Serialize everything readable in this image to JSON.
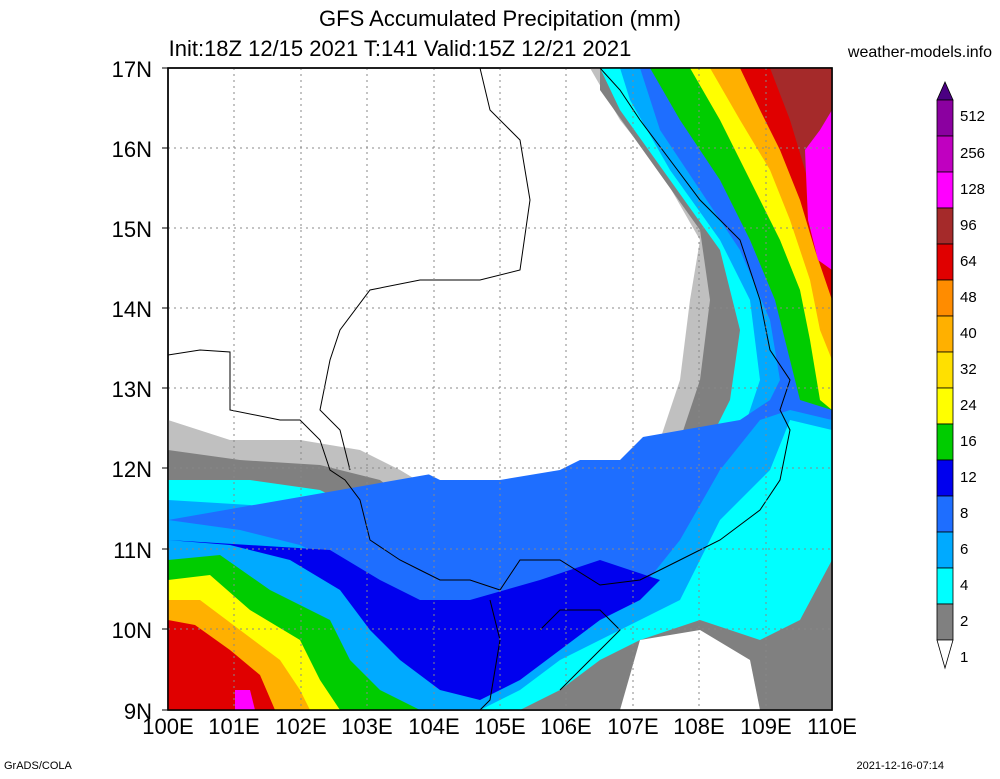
{
  "header": {
    "title": "GFS Accumulated Precipitation (mm)",
    "subtitle": "Init:18Z 12/15 2021 T:141 Valid:15Z 12/21 2021",
    "website": "weather-models.info"
  },
  "axes": {
    "lat_labels": [
      "17N",
      "16N",
      "15N",
      "14N",
      "13N",
      "12N",
      "11N",
      "10N",
      "9N"
    ],
    "lon_labels": [
      "100E",
      "101E",
      "102E",
      "103E",
      "104E",
      "105E",
      "106E",
      "107E",
      "108E",
      "109E",
      "110E"
    ]
  },
  "colorbar": {
    "levels": [
      "512",
      "256",
      "128",
      "96",
      "64",
      "48",
      "40",
      "32",
      "24",
      "16",
      "12",
      "8",
      "6",
      "4",
      "2",
      "1"
    ],
    "colors": [
      "#4b0082",
      "#8b00a0",
      "#c000c0",
      "#ff00ff",
      "#a52a2a",
      "#e00000",
      "#ff8c00",
      "#ffb000",
      "#ffe000",
      "#ffff00",
      "#00cc00",
      "#0000ee",
      "#1e6eff",
      "#00aaff",
      "#00ffff",
      "#808080",
      "#c0c0c0"
    ]
  },
  "footer": {
    "left": "GrADS/COLA",
    "right": "2021-12-16-07:14"
  }
}
